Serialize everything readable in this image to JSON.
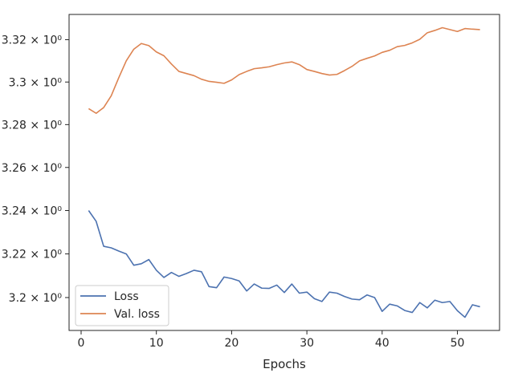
{
  "chart_data": {
    "type": "line",
    "title": "",
    "xlabel": "Epochs",
    "ylabel": "",
    "yscale": "log",
    "xlim": [
      -1.6,
      55.6
    ],
    "ylim": [
      3.185,
      3.332
    ],
    "grid": false,
    "legend_position": "lower-left",
    "x_ticks": [
      0,
      10,
      20,
      30,
      40,
      50
    ],
    "x_tick_labels": [
      "0",
      "10",
      "20",
      "30",
      "40",
      "50"
    ],
    "y_ticks": [
      3.2,
      3.22,
      3.24,
      3.26,
      3.28,
      3.3,
      3.32
    ],
    "y_tick_labels": [
      "3.2 × 10⁰",
      "3.22 × 10⁰",
      "3.24 × 10⁰",
      "3.26 × 10⁰",
      "3.28 × 10⁰",
      "3.3 × 10⁰",
      "3.32 × 10⁰"
    ],
    "x": [
      1,
      2,
      3,
      4,
      5,
      6,
      7,
      8,
      9,
      10,
      11,
      12,
      13,
      14,
      15,
      16,
      17,
      18,
      19,
      20,
      21,
      22,
      23,
      24,
      25,
      26,
      27,
      28,
      29,
      30,
      31,
      32,
      33,
      34,
      35,
      36,
      37,
      38,
      39,
      40,
      41,
      42,
      43,
      44,
      45,
      46,
      47,
      48,
      49,
      50,
      51,
      52,
      53
    ],
    "series": [
      {
        "name": "Loss",
        "color": "#4c72b0",
        "values": [
          3.24,
          3.235,
          3.2235,
          3.2228,
          3.2213,
          3.22,
          3.2148,
          3.2155,
          3.2174,
          3.2125,
          3.2092,
          3.2115,
          3.2097,
          3.211,
          3.2125,
          3.2118,
          3.205,
          3.2045,
          3.2094,
          3.2087,
          3.2076,
          3.203,
          3.2062,
          3.2043,
          3.2042,
          3.2057,
          3.2023,
          3.2062,
          3.202,
          3.2025,
          3.1995,
          3.1982,
          3.2025,
          3.202,
          3.2005,
          3.1993,
          3.199,
          3.2012,
          3.2,
          3.1937,
          3.197,
          3.1962,
          3.1941,
          3.1932,
          3.1977,
          3.1953,
          3.1988,
          3.1977,
          3.1982,
          3.194,
          3.191,
          3.1967,
          3.1958
        ]
      },
      {
        "name": "Val. loss",
        "color": "#dd8452",
        "values": [
          3.2875,
          3.2853,
          3.288,
          3.2935,
          3.302,
          3.31,
          3.3155,
          3.3182,
          3.3172,
          3.3142,
          3.3124,
          3.3085,
          3.305,
          3.304,
          3.303,
          3.3013,
          3.3003,
          3.2999,
          3.2994,
          3.301,
          3.3035,
          3.305,
          3.3063,
          3.3067,
          3.3072,
          3.3082,
          3.309,
          3.3095,
          3.3082,
          3.3059,
          3.305,
          3.304,
          3.3033,
          3.3036,
          3.3054,
          3.3074,
          3.31,
          3.3112,
          3.3123,
          3.314,
          3.315,
          3.3167,
          3.3173,
          3.3185,
          3.3202,
          3.3233,
          3.3244,
          3.3257,
          3.3248,
          3.3239,
          3.3253,
          3.325,
          3.3248
        ]
      }
    ]
  }
}
